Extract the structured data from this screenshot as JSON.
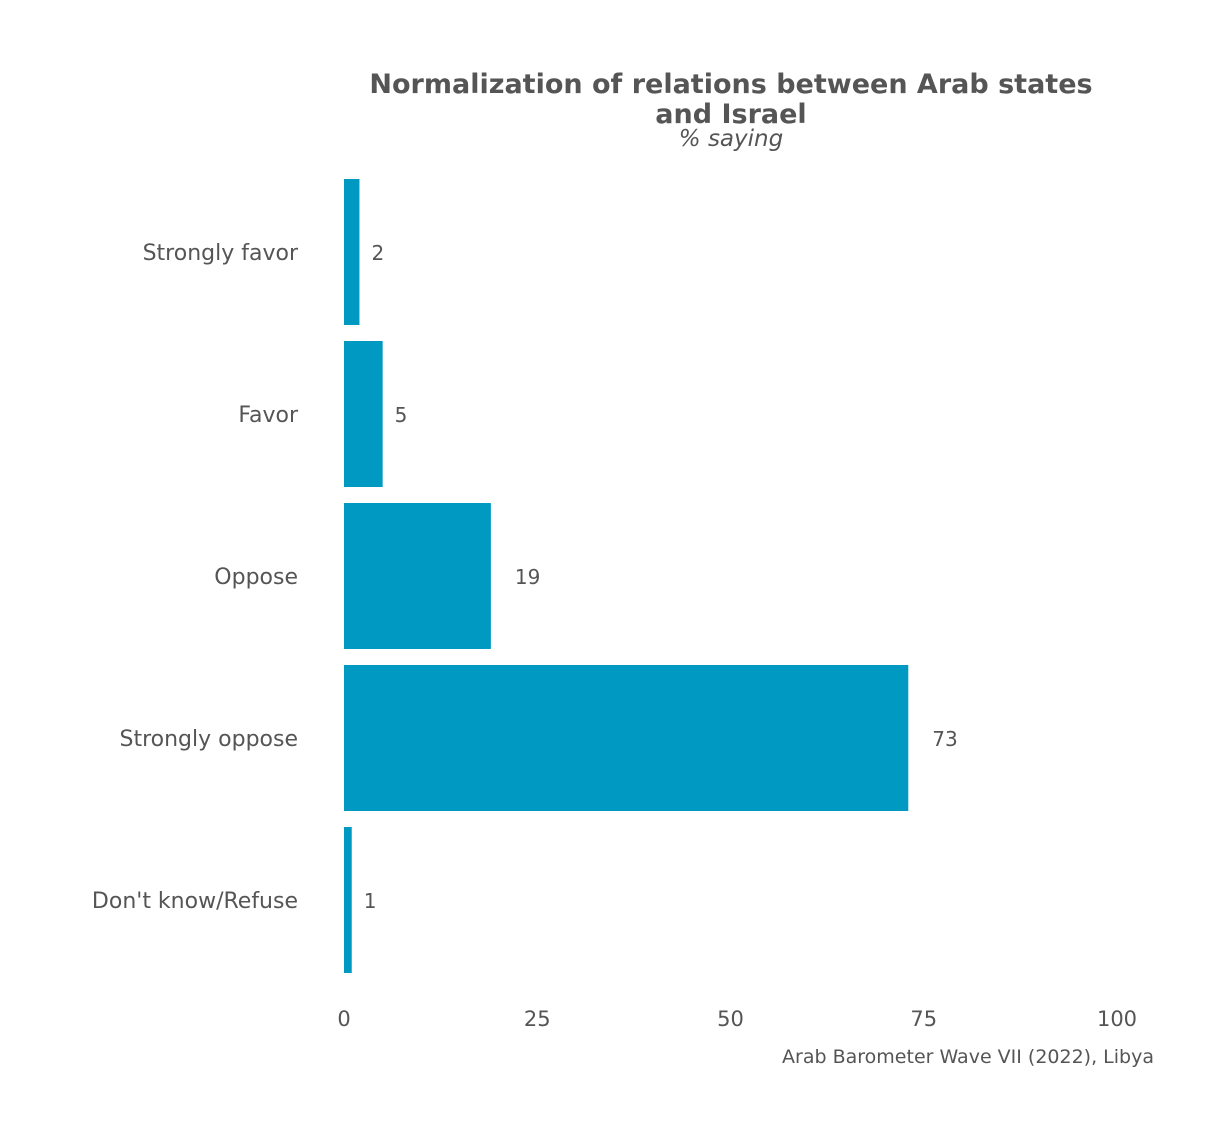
{
  "chart_data": {
    "type": "bar",
    "orientation": "horizontal",
    "title": "Normalization of relations between Arab states and Israel",
    "subtitle": "% saying",
    "caption": "Arab Barometer Wave VII (2022), Libya",
    "categories": [
      "Strongly favor",
      "Favor",
      "Oppose",
      "Strongly oppose",
      "Don't know/Refuse"
    ],
    "values": [
      2,
      5,
      19,
      73,
      1
    ],
    "xlim": [
      0,
      100
    ],
    "xticks": [
      0,
      25,
      50,
      75,
      100
    ],
    "xlabel": "",
    "ylabel": "",
    "grid": false,
    "legend": "none",
    "colors": {
      "bar": "#0099c1",
      "text": "#555555"
    }
  }
}
